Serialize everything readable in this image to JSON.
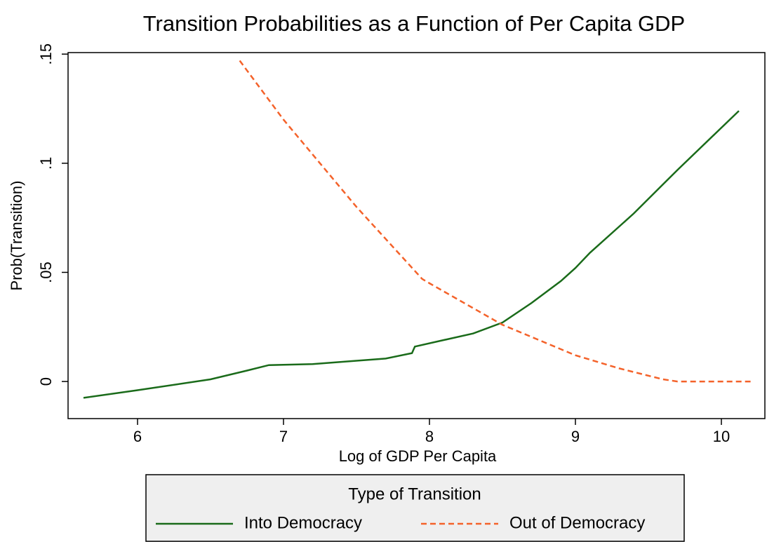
{
  "chart_data": {
    "type": "line",
    "title": "Transition Probabilities as a Function of Per Capita GDP",
    "xlabel": "Log of GDP Per Capita",
    "ylabel": "Prob(Transition)",
    "legend_title": "Type of Transition",
    "xlim": [
      5.524,
      10.298
    ],
    "xticks": [
      6,
      7,
      8,
      9,
      10
    ],
    "ylim": [
      -0.017,
      0.1507
    ],
    "yticks": [
      0,
      {
        "value": 0.05,
        "label": ".05"
      },
      {
        "value": 0.1,
        "label": ".1"
      },
      {
        "value": 0.15,
        "label": ".15"
      }
    ],
    "legend": "bottom",
    "series": [
      {
        "name": "Into Democracy",
        "color": "#1a6b1a",
        "dash": "solid",
        "x": [
          5.63,
          6.0,
          6.5,
          6.75,
          6.9,
          7.2,
          7.5,
          7.7,
          7.88,
          7.9,
          8.1,
          8.3,
          8.5,
          8.7,
          8.9,
          9.0,
          9.1,
          9.4,
          9.7,
          10.12
        ],
        "values": [
          -0.0075,
          -0.004,
          0.001,
          0.005,
          0.0075,
          0.008,
          0.0095,
          0.0105,
          0.013,
          0.016,
          0.019,
          0.022,
          0.027,
          0.036,
          0.046,
          0.052,
          0.059,
          0.077,
          0.097,
          0.124
        ]
      },
      {
        "name": "Out of Democracy",
        "color": "#f4622a",
        "dash": "dashed",
        "x": [
          6.7,
          7.0,
          7.5,
          7.95,
          8.0,
          8.5,
          9.0,
          9.3,
          9.6,
          9.7,
          10.2
        ],
        "values": [
          0.147,
          0.12,
          0.08,
          0.047,
          0.045,
          0.026,
          0.012,
          0.006,
          0.001,
          0,
          0
        ]
      }
    ]
  }
}
